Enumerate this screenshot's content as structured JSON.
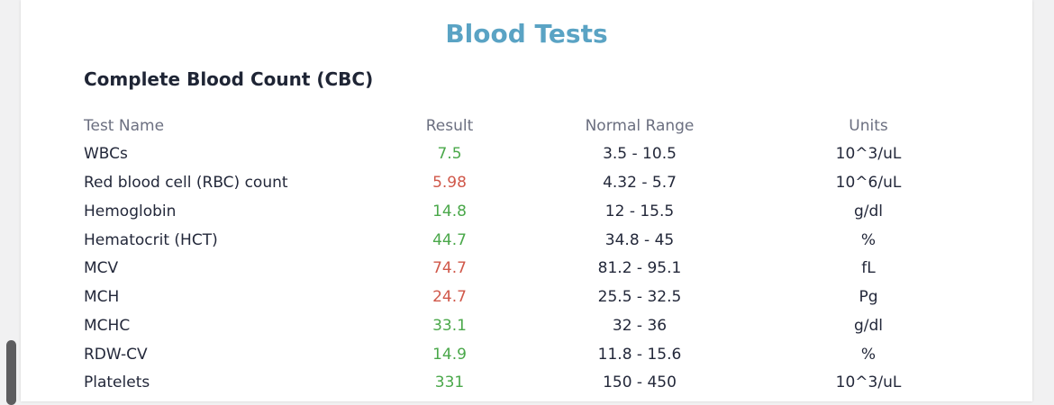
{
  "page": {
    "title": "Blood Tests",
    "section_title": "Complete Blood Count (CBC)"
  },
  "table": {
    "headers": [
      "Test Name",
      "Result",
      "Normal Range",
      "Units"
    ],
    "rows": [
      {
        "name": "WBCs",
        "result": "7.5",
        "range": "3.5 - 10.5",
        "units": "10^3/uL",
        "status": "normal"
      },
      {
        "name": "Red blood cell (RBC) count",
        "result": "5.98",
        "range": "4.32 - 5.7",
        "units": "10^6/uL",
        "status": "abnormal"
      },
      {
        "name": "Hemoglobin",
        "result": "14.8",
        "range": "12 - 15.5",
        "units": "g/dl",
        "status": "normal"
      },
      {
        "name": "Hematocrit (HCT)",
        "result": "44.7",
        "range": "34.8 - 45",
        "units": "%",
        "status": "normal"
      },
      {
        "name": "MCV",
        "result": "74.7",
        "range": "81.2 - 95.1",
        "units": "fL",
        "status": "abnormal"
      },
      {
        "name": "MCH",
        "result": "24.7",
        "range": "25.5 - 32.5",
        "units": "Pg",
        "status": "abnormal"
      },
      {
        "name": "MCHC",
        "result": "33.1",
        "range": "32 - 36",
        "units": "g/dl",
        "status": "normal"
      },
      {
        "name": "RDW-CV",
        "result": "14.9",
        "range": "11.8 - 15.6",
        "units": "%",
        "status": "normal"
      },
      {
        "name": "Platelets",
        "result": "331",
        "range": "150 - 450",
        "units": "10^3/uL",
        "status": "normal"
      }
    ]
  },
  "colors": {
    "title": "#5aa3c4",
    "normal": "#4aa84a",
    "abnormal": "#d0584a"
  }
}
